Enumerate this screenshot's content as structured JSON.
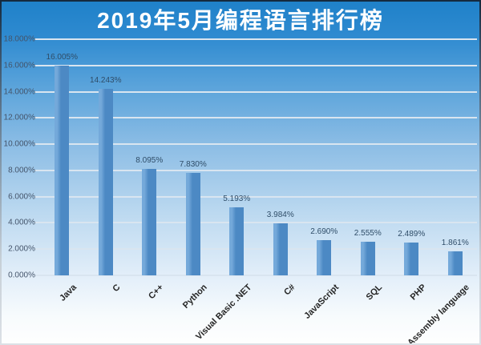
{
  "chart_data": {
    "type": "bar",
    "title": "2019年5月编程语言排行榜",
    "categories": [
      "Java",
      "C",
      "C++",
      "Python",
      "Visual Basic .NET",
      "C#",
      "JavaScript",
      "SQL",
      "PHP",
      "Assembly language"
    ],
    "values": [
      16.005,
      14.243,
      8.095,
      7.83,
      5.193,
      3.984,
      2.69,
      2.555,
      2.489,
      1.861
    ],
    "data_labels": [
      "16.005%",
      "14.243%",
      "8.095%",
      "7.830%",
      "5.193%",
      "3.984%",
      "2.690%",
      "2.555%",
      "2.489%",
      "1.861%"
    ],
    "xlabel": "",
    "ylabel": "",
    "ylim": [
      0,
      18
    ],
    "ytick_step": 2,
    "ytick_labels": [
      "0.000%",
      "2.000%",
      "4.000%",
      "6.000%",
      "8.000%",
      "10.000%",
      "12.000%",
      "14.000%",
      "16.000%",
      "18.000%"
    ],
    "grid": true,
    "legend": false
  },
  "colors": {
    "bg_top": "#1F81C9",
    "bg_bottom": "#FEFEFE",
    "title_text": "#FFFFFF",
    "bar_fill": "#4C89C4",
    "bar_highlight": "#74A9DA",
    "data_label": "#2F4D68",
    "ytick_text": "#44546A",
    "xtick_text": "#262626",
    "gridline": "#D9E5F0"
  }
}
